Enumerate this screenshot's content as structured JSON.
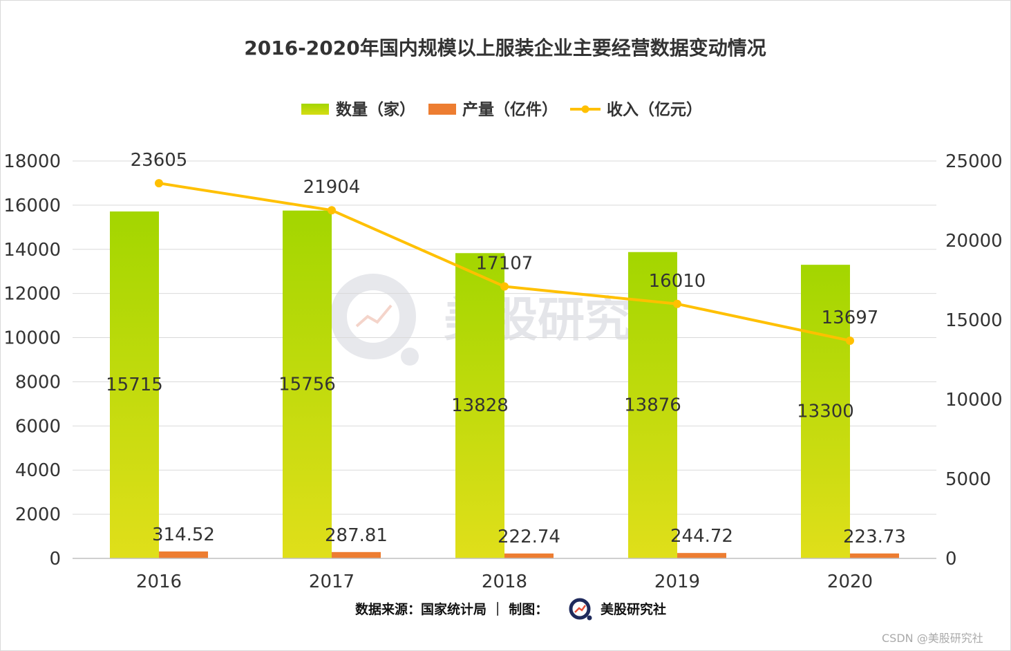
{
  "chart_data": {
    "type": "bar",
    "title": "2016-2020年国内规模以上服装企业主要经营数据变动情况",
    "categories": [
      "2016",
      "2017",
      "2018",
      "2019",
      "2020"
    ],
    "series": [
      {
        "name": "数量（家）",
        "type": "bar",
        "axis": "left",
        "color": "#a3d600",
        "values": [
          15715,
          15756,
          13828,
          13876,
          13300
        ],
        "labels": [
          "15715",
          "15756",
          "13828",
          "13876",
          "13300"
        ]
      },
      {
        "name": "产量（亿件）",
        "type": "bar",
        "axis": "left",
        "color": "#ed7d31",
        "values": [
          314.52,
          287.81,
          222.74,
          244.72,
          223.73
        ],
        "labels": [
          "314.52",
          "287.81",
          "222.74",
          "244.72",
          "223.73"
        ]
      },
      {
        "name": "收入（亿元）",
        "type": "line",
        "axis": "right",
        "color": "#ffc000",
        "values": [
          23605,
          21904,
          17107,
          16010,
          13697
        ],
        "labels": [
          "23605",
          "21904",
          "17107",
          "16010",
          "13697"
        ]
      }
    ],
    "y_left": {
      "min": 0,
      "max": 18000,
      "ticks": [
        "0",
        "2000",
        "4000",
        "6000",
        "8000",
        "10000",
        "12000",
        "14000",
        "16000",
        "18000"
      ]
    },
    "y_right": {
      "min": 0,
      "max": 25000,
      "ticks": [
        "0",
        "5000",
        "10000",
        "15000",
        "20000",
        "25000"
      ]
    },
    "legend": "top-center",
    "grid": true
  },
  "footer": {
    "source": "数据来源：国家统计局  ｜ 制图：",
    "brand": "美股研究社",
    "credit": "CSDN @美股研究社"
  },
  "watermark": {
    "text": "美股研究社"
  },
  "colors": {
    "bar_top": "#a3d600",
    "bar_bottom": "#e0df1a",
    "orange": "#ed7d31",
    "line": "#ffc000",
    "grid": "#d9d9d9"
  }
}
